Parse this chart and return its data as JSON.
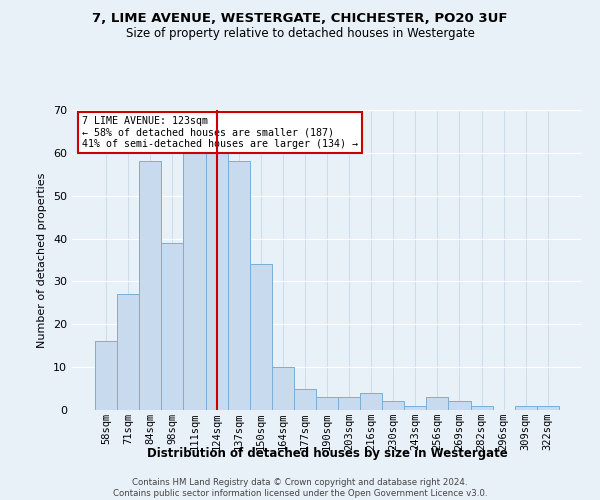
{
  "title1": "7, LIME AVENUE, WESTERGATE, CHICHESTER, PO20 3UF",
  "title2": "Size of property relative to detached houses in Westergate",
  "xlabel": "Distribution of detached houses by size in Westergate",
  "ylabel": "Number of detached properties",
  "categories": [
    "58sqm",
    "71sqm",
    "84sqm",
    "98sqm",
    "111sqm",
    "124sqm",
    "137sqm",
    "150sqm",
    "164sqm",
    "177sqm",
    "190sqm",
    "203sqm",
    "216sqm",
    "230sqm",
    "243sqm",
    "256sqm",
    "269sqm",
    "282sqm",
    "296sqm",
    "309sqm",
    "322sqm"
  ],
  "values": [
    16,
    27,
    58,
    39,
    65,
    65,
    58,
    34,
    10,
    5,
    3,
    3,
    4,
    2,
    1,
    3,
    2,
    1,
    0,
    1,
    1
  ],
  "bar_color": "#c8daed",
  "bar_edge_color": "#7aaed6",
  "vline_x_index": 5,
  "vline_color": "#cc0000",
  "annotation_text": "7 LIME AVENUE: 123sqm\n← 58% of detached houses are smaller (187)\n41% of semi-detached houses are larger (134) →",
  "annotation_box_color": "#ffffff",
  "annotation_box_edge": "#cc0000",
  "ylim": [
    0,
    70
  ],
  "yticks": [
    0,
    10,
    20,
    30,
    40,
    50,
    60,
    70
  ],
  "bg_color": "#e8f0f8",
  "plot_bg_color": "#e8f0f8",
  "footer1": "Contains HM Land Registry data © Crown copyright and database right 2024.",
  "footer2": "Contains public sector information licensed under the Open Government Licence v3.0."
}
